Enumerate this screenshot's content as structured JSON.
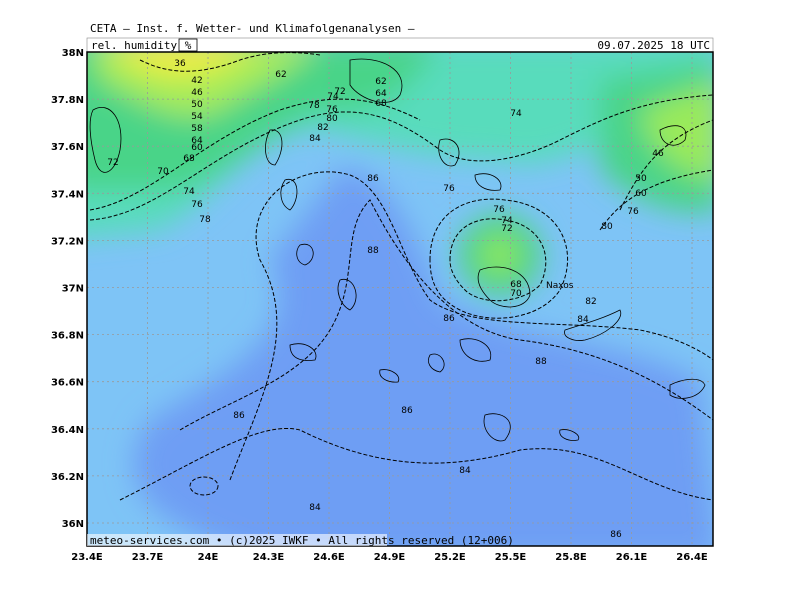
{
  "header": {
    "model": "CETA – Inst. f. Wetter- und Klimafolgenanalysen –",
    "datetime": "09.07.2025 18 UTC"
  },
  "parameter": {
    "name": "rel. humidity",
    "unit": "%"
  },
  "place": "Naxos",
  "footer": "meteo-services.com • (c)2025 IWKF • All rights reserved (12+006)",
  "lon_ticks": [
    {
      "value": 23.4,
      "label": "23.4E"
    },
    {
      "value": 23.7,
      "label": "23.7E"
    },
    {
      "value": 24,
      "label": "24E"
    },
    {
      "value": 24.3,
      "label": "24.3E"
    },
    {
      "value": 24.6,
      "label": "24.6E"
    },
    {
      "value": 24.9,
      "label": "24.9E"
    },
    {
      "value": 25.2,
      "label": "25.2E"
    },
    {
      "value": 25.5,
      "label": "25.5E"
    },
    {
      "value": 25.8,
      "label": "25.8E"
    },
    {
      "value": 26.1,
      "label": "26.1E"
    },
    {
      "value": 26.4,
      "label": "26.4E"
    }
  ],
  "lat_ticks": [
    {
      "value": 38,
      "label": "38N"
    },
    {
      "value": 37.8,
      "label": "37.8N"
    },
    {
      "value": 37.6,
      "label": "37.6N"
    },
    {
      "value": 37.4,
      "label": "37.4N"
    },
    {
      "value": 37.2,
      "label": "37.2N"
    },
    {
      "value": 37,
      "label": "37N"
    },
    {
      "value": 36.8,
      "label": "36.8N"
    },
    {
      "value": 36.6,
      "label": "36.6N"
    },
    {
      "value": 36.4,
      "label": "36.4N"
    },
    {
      "value": 36.2,
      "label": "36.2N"
    },
    {
      "value": 36,
      "label": "36N"
    }
  ],
  "contour_labels": [
    36,
    42,
    46,
    50,
    54,
    58,
    62,
    62,
    64,
    68,
    72,
    74,
    78,
    76,
    80,
    82,
    84,
    74,
    72,
    70,
    68,
    64,
    60,
    74,
    76,
    78,
    76,
    86,
    88,
    76,
    74,
    72,
    68,
    70,
    82,
    84,
    80,
    46,
    50,
    60,
    76,
    88,
    86,
    86,
    84,
    84,
    86,
    86
  ]
}
